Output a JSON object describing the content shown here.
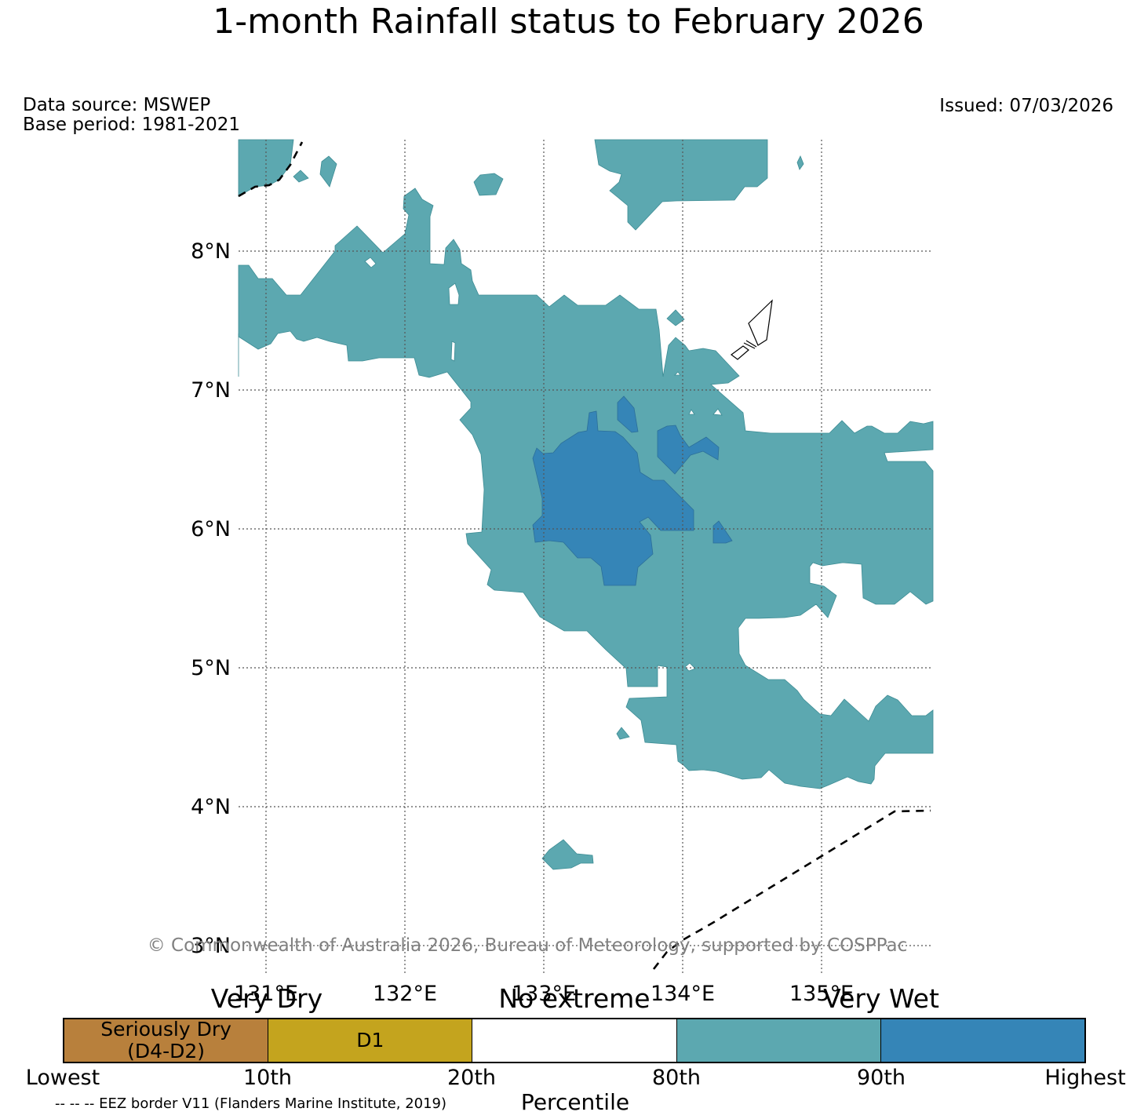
{
  "title": "1-month Rainfall status to February 2026",
  "data_source": "Data source: MSWEP",
  "base_period": "Base period: 1981-2021",
  "issued": "Issued: 07/03/2026",
  "copyright": "© Commonwealth of Australia 2026, Bureau of Meteorology, supported by COSPPac",
  "map": {
    "lat_labels": [
      "8°N",
      "7°N",
      "6°N",
      "5°N",
      "4°N",
      "3°N"
    ],
    "lon_labels": [
      "131°E",
      "132°E",
      "133°E",
      "134°E",
      "135°E"
    ]
  },
  "legend": {
    "categories": [
      "Very Dry",
      "No extreme",
      "Very Wet"
    ],
    "segments": [
      {
        "label": "Seriously Dry\n(D4-D2)",
        "color": "#b8803c"
      },
      {
        "label": "D1",
        "color": "#c4a41e"
      },
      {
        "label": "",
        "color": "#ffffff"
      },
      {
        "label": "",
        "color": "#5ca8b0"
      },
      {
        "label": "",
        "color": "#3585b7"
      }
    ],
    "ticks": [
      "Lowest",
      "10th",
      "20th",
      "80th",
      "90th",
      "Highest"
    ],
    "xlabel": "Percentile",
    "eez_note": "-- -- -- EEZ border V11 (Flanders Marine Institute, 2019)"
  },
  "colors": {
    "very_wet_80_90": "#5ca8b0",
    "very_wet_90_plus": "#3585b7",
    "dry": "#b8803c",
    "d1": "#c4a41e"
  }
}
